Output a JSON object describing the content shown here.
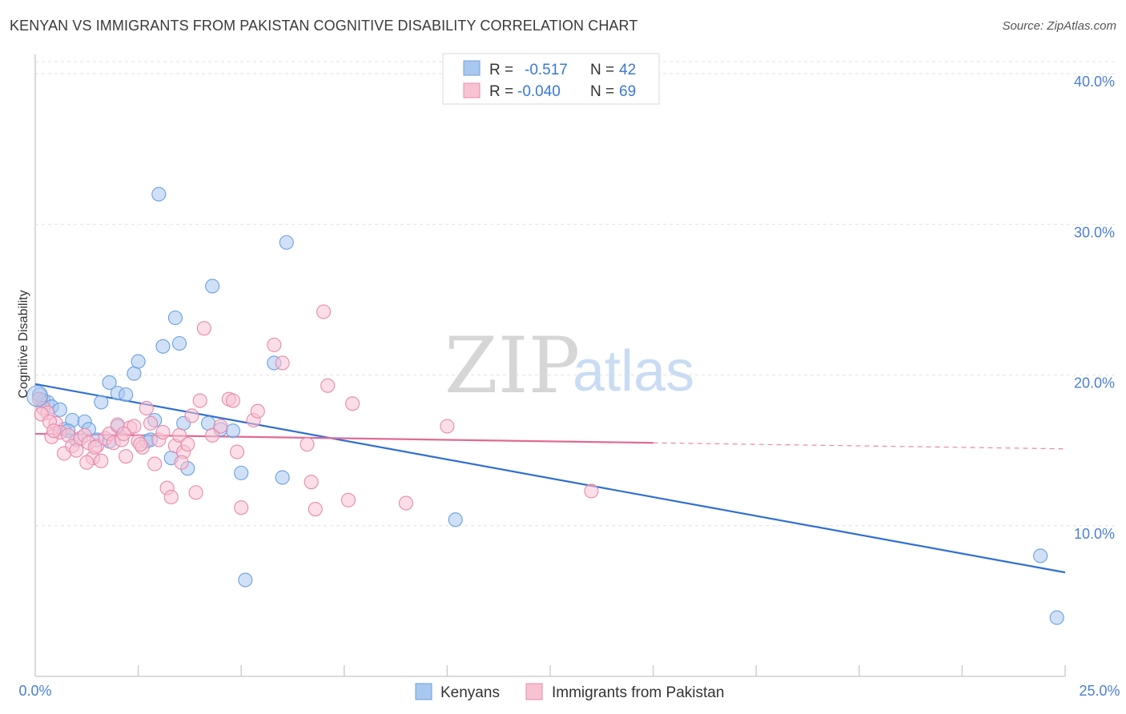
{
  "header": {
    "title": "KENYAN VS IMMIGRANTS FROM PAKISTAN COGNITIVE DISABILITY CORRELATION CHART",
    "source": "Source: ZipAtlas.com"
  },
  "legend": {
    "rows": [
      {
        "r_label": "R =",
        "r_value": "-0.517",
        "n_label": "N =",
        "n_value": "42",
        "color": "#a9c8f0",
        "stroke": "#6a9fe0"
      },
      {
        "r_label": "R =",
        "r_value": "-0.040",
        "n_label": "N =",
        "n_value": "69",
        "color": "#f7c3d3",
        "stroke": "#e88aaa"
      }
    ]
  },
  "bottom_legend": [
    {
      "label": "Kenyans",
      "color": "#a9c8f0",
      "stroke": "#6a9fe0"
    },
    {
      "label": "Immigrants from Pakistan",
      "color": "#f7c3d3",
      "stroke": "#e88aaa"
    }
  ],
  "watermark": {
    "zip": "ZIP",
    "atlas": "atlas"
  },
  "chart_data": {
    "type": "scatter",
    "title": "KENYAN VS IMMIGRANTS FROM PAKISTAN COGNITIVE DISABILITY CORRELATION CHART",
    "xlabel": "",
    "ylabel": "Cognitive Disability",
    "xlim": [
      0,
      25
    ],
    "ylim": [
      0,
      40.8
    ],
    "x_tick_labels": [
      "0.0%",
      "25.0%"
    ],
    "y_ticks": [
      10,
      20,
      30,
      40
    ],
    "y_tick_labels": [
      "10.0%",
      "20.0%",
      "30.0%",
      "40.0%"
    ],
    "grid": true,
    "series": [
      {
        "name": "Kenyans",
        "color": "#6a9fe0",
        "fill": "#a9c8f0",
        "trend": {
          "x": [
            0,
            25
          ],
          "y": [
            19.4,
            6.9
          ],
          "color": "#2f6fd0"
        },
        "points": [
          [
            0.1,
            18.7
          ],
          [
            0.2,
            18.3
          ],
          [
            0.3,
            18.2
          ],
          [
            0.4,
            17.9
          ],
          [
            0.6,
            17.7
          ],
          [
            0.7,
            16.4
          ],
          [
            0.9,
            17.0
          ],
          [
            1.2,
            16.9
          ],
          [
            1.3,
            16.4
          ],
          [
            1.6,
            18.2
          ],
          [
            1.8,
            19.5
          ],
          [
            2.0,
            18.8
          ],
          [
            2.2,
            18.7
          ],
          [
            2.4,
            20.1
          ],
          [
            2.5,
            20.9
          ],
          [
            1.5,
            15.7
          ],
          [
            1.8,
            15.6
          ],
          [
            2.0,
            16.6
          ],
          [
            2.7,
            15.6
          ],
          [
            2.8,
            15.7
          ],
          [
            2.9,
            17.0
          ],
          [
            3.0,
            32.0
          ],
          [
            3.1,
            21.9
          ],
          [
            3.4,
            23.8
          ],
          [
            3.5,
            22.1
          ],
          [
            3.6,
            16.8
          ],
          [
            3.7,
            13.8
          ],
          [
            3.3,
            14.5
          ],
          [
            4.2,
            16.8
          ],
          [
            4.3,
            25.9
          ],
          [
            4.5,
            16.4
          ],
          [
            4.8,
            16.3
          ],
          [
            5.0,
            13.5
          ],
          [
            5.1,
            6.4
          ],
          [
            5.8,
            20.8
          ],
          [
            6.0,
            13.2
          ],
          [
            6.1,
            28.8
          ],
          [
            10.2,
            10.4
          ],
          [
            24.4,
            8.0
          ],
          [
            24.8,
            3.9
          ],
          [
            1.0,
            15.7
          ],
          [
            0.8,
            16.3
          ]
        ]
      },
      {
        "name": "Immigrants from Pakistan",
        "color": "#e88aaa",
        "fill": "#f7c3d3",
        "trend": {
          "x": [
            0,
            15
          ],
          "y": [
            16.1,
            15.5
          ],
          "dash_x": [
            15,
            25
          ],
          "dash_y": [
            15.5,
            15.1
          ],
          "color": "#e06a94"
        },
        "points": [
          [
            0.1,
            18.4
          ],
          [
            0.2,
            17.8
          ],
          [
            0.3,
            17.5
          ],
          [
            0.4,
            15.9
          ],
          [
            0.5,
            16.8
          ],
          [
            0.6,
            16.2
          ],
          [
            0.7,
            14.8
          ],
          [
            0.8,
            16.0
          ],
          [
            0.9,
            15.3
          ],
          [
            1.0,
            15.0
          ],
          [
            1.1,
            15.8
          ],
          [
            1.2,
            16.0
          ],
          [
            1.3,
            15.5
          ],
          [
            1.4,
            14.5
          ],
          [
            1.5,
            15.3
          ],
          [
            1.6,
            14.3
          ],
          [
            1.7,
            15.8
          ],
          [
            1.8,
            16.1
          ],
          [
            1.9,
            15.5
          ],
          [
            2.0,
            16.7
          ],
          [
            2.1,
            15.7
          ],
          [
            2.2,
            14.6
          ],
          [
            2.3,
            16.5
          ],
          [
            2.4,
            16.6
          ],
          [
            2.5,
            15.6
          ],
          [
            2.6,
            15.2
          ],
          [
            2.7,
            17.8
          ],
          [
            2.8,
            16.8
          ],
          [
            2.9,
            14.1
          ],
          [
            3.0,
            15.7
          ],
          [
            3.1,
            16.2
          ],
          [
            3.2,
            12.5
          ],
          [
            3.3,
            11.9
          ],
          [
            3.4,
            15.3
          ],
          [
            3.5,
            16.0
          ],
          [
            3.6,
            14.9
          ],
          [
            3.7,
            15.4
          ],
          [
            3.8,
            17.3
          ],
          [
            3.9,
            12.2
          ],
          [
            4.0,
            18.3
          ],
          [
            4.1,
            23.1
          ],
          [
            4.3,
            16.0
          ],
          [
            4.5,
            16.6
          ],
          [
            4.7,
            18.4
          ],
          [
            4.8,
            18.3
          ],
          [
            4.9,
            14.9
          ],
          [
            5.0,
            11.2
          ],
          [
            5.3,
            17.0
          ],
          [
            5.4,
            17.6
          ],
          [
            5.8,
            22.0
          ],
          [
            6.0,
            20.8
          ],
          [
            6.6,
            15.4
          ],
          [
            6.7,
            12.9
          ],
          [
            6.8,
            11.1
          ],
          [
            7.0,
            24.2
          ],
          [
            7.1,
            19.3
          ],
          [
            7.6,
            11.7
          ],
          [
            7.7,
            18.1
          ],
          [
            9.0,
            11.5
          ],
          [
            10.0,
            16.6
          ],
          [
            13.5,
            12.3
          ],
          [
            0.15,
            17.4
          ],
          [
            0.35,
            16.9
          ],
          [
            1.45,
            15.2
          ],
          [
            2.55,
            15.4
          ],
          [
            3.55,
            14.2
          ],
          [
            0.45,
            16.3
          ],
          [
            1.25,
            14.2
          ],
          [
            2.15,
            16.1
          ]
        ]
      }
    ]
  }
}
